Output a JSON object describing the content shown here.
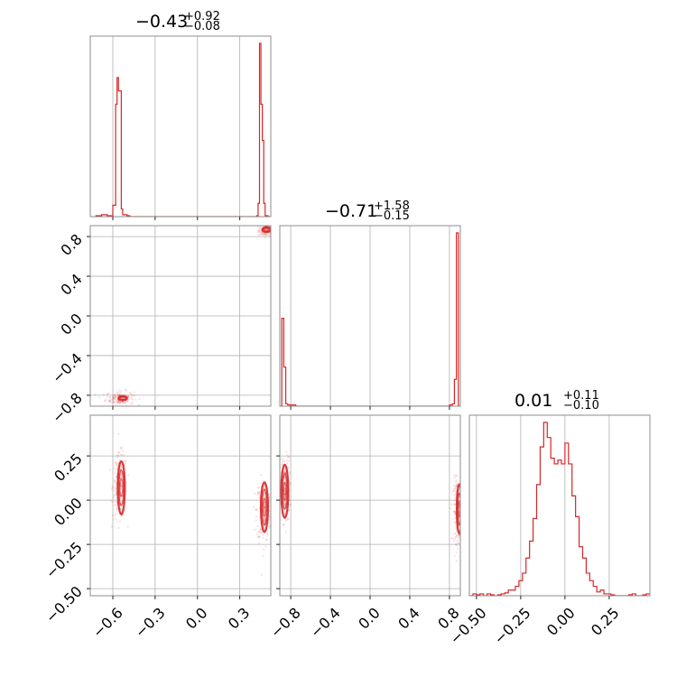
{
  "chart_data": {
    "type": "corner",
    "color": "#d62728",
    "parameters": [
      {
        "title": {
          "main": "−0.43",
          "plus": "+0.92",
          "minus": "−0.08"
        },
        "range": [
          -0.76,
          0.52
        ],
        "ticks": [
          {
            "value": -0.6,
            "label": "−0.6"
          },
          {
            "value": -0.3,
            "label": "−0.3"
          },
          {
            "value": 0.0,
            "label": "0.0"
          },
          {
            "value": 0.3,
            "label": "0.3"
          }
        ]
      },
      {
        "title": {
          "main": "−0.71",
          "plus": "+1.58",
          "minus": "−0.15"
        },
        "range": [
          -0.91,
          0.91
        ],
        "ticks": [
          {
            "value": -0.8,
            "label": "−0.8"
          },
          {
            "value": -0.4,
            "label": "−0.4"
          },
          {
            "value": 0.0,
            "label": "0.0"
          },
          {
            "value": 0.4,
            "label": "0.4"
          },
          {
            "value": 0.8,
            "label": "0.8"
          }
        ]
      },
      {
        "title": {
          "main": "0.01",
          "plus": "+0.11",
          "minus": "−0.10"
        },
        "range": [
          -0.54,
          0.48
        ],
        "ticks": [
          {
            "value": -0.5,
            "label": "−0.50"
          },
          {
            "value": -0.25,
            "label": "−0.25"
          },
          {
            "value": 0.0,
            "label": "0.00"
          },
          {
            "value": 0.25,
            "label": "0.25"
          }
        ]
      }
    ],
    "histograms": [
      {
        "param": 0,
        "edges": [
          -0.72,
          -0.68,
          -0.64,
          -0.6,
          -0.58,
          -0.57,
          -0.56,
          -0.55,
          -0.54,
          -0.53,
          -0.52,
          -0.5,
          -0.48,
          -0.46,
          0.42,
          0.43,
          0.44,
          0.45,
          0.46,
          0.47,
          0.48,
          0.5,
          0.52
        ],
        "counts": [
          0.005,
          0.01,
          0.005,
          0.06,
          0.59,
          0.73,
          0.66,
          0.66,
          0.04,
          0.01,
          0.01,
          0.005,
          0.0,
          0.0,
          0.005,
          0.07,
          0.91,
          0.59,
          0.4,
          0.07,
          0.005,
          0.0
        ]
      },
      {
        "param": 1,
        "edges": [
          -0.91,
          -0.89,
          -0.87,
          -0.85,
          -0.83,
          -0.8,
          -0.75,
          -0.7,
          0.8,
          0.83,
          0.85,
          0.87,
          0.89,
          0.91
        ],
        "counts": [
          0.0,
          0.36,
          0.16,
          0.01,
          0.005,
          0.005,
          0.0,
          0.0,
          0.005,
          0.01,
          0.11,
          0.71,
          0.0
        ]
      },
      {
        "param": 2,
        "edges": [
          -0.54,
          -0.52,
          -0.5,
          -0.48,
          -0.46,
          -0.44,
          -0.42,
          -0.4,
          -0.38,
          -0.36,
          -0.34,
          -0.32,
          -0.3,
          -0.28,
          -0.26,
          -0.24,
          -0.22,
          -0.2,
          -0.18,
          -0.16,
          -0.14,
          -0.12,
          -0.1,
          -0.08,
          -0.06,
          -0.04,
          -0.02,
          0.0,
          0.02,
          0.04,
          0.06,
          0.08,
          0.1,
          0.12,
          0.14,
          0.16,
          0.18,
          0.2,
          0.22,
          0.24,
          0.26,
          0.28,
          0.3,
          0.32,
          0.34,
          0.36,
          0.38,
          0.4,
          0.42,
          0.44,
          0.46,
          0.48
        ],
        "counts": [
          0.0,
          0.01,
          0.005,
          0.01,
          0.0,
          0.01,
          0.005,
          0.0,
          0.005,
          0.01,
          0.015,
          0.03,
          0.03,
          0.05,
          0.08,
          0.12,
          0.2,
          0.29,
          0.41,
          0.59,
          0.79,
          0.92,
          0.84,
          0.73,
          0.7,
          0.72,
          0.7,
          0.81,
          0.7,
          0.53,
          0.42,
          0.26,
          0.2,
          0.12,
          0.08,
          0.05,
          0.02,
          0.03,
          0.01,
          0.01,
          0.005,
          0.0,
          0.0,
          0.0,
          0.0,
          0.005,
          0.01,
          0.0,
          0.0,
          0.005,
          0.01
        ]
      }
    ],
    "scatter_clusters": [
      {
        "row": 1,
        "col": 0,
        "cx": 0.49,
        "cy": 0.86,
        "sx": 0.03,
        "sy": 0.03,
        "n": 120
      },
      {
        "row": 1,
        "col": 0,
        "cx": -0.55,
        "cy": -0.83,
        "sx": 0.05,
        "sy": 0.035,
        "n": 160
      },
      {
        "row": 2,
        "col": 0,
        "cx": -0.55,
        "cy": 0.08,
        "sx": 0.025,
        "sy": 0.09,
        "n": 220
      },
      {
        "row": 2,
        "col": 0,
        "cx": 0.47,
        "cy": -0.06,
        "sx": 0.025,
        "sy": 0.09,
        "n": 220
      },
      {
        "row": 2,
        "col": 1,
        "cx": -0.86,
        "cy": 0.06,
        "sx": 0.025,
        "sy": 0.09,
        "n": 220
      },
      {
        "row": 2,
        "col": 1,
        "cx": 0.88,
        "cy": -0.06,
        "sx": 0.02,
        "sy": 0.09,
        "n": 180
      }
    ],
    "contours": [
      {
        "row": 1,
        "col": 0,
        "cx": -0.53,
        "cy": -0.83,
        "rx": [
          0.03,
          0.02
        ],
        "ry": [
          0.02,
          0.013
        ]
      },
      {
        "row": 1,
        "col": 0,
        "cx": 0.49,
        "cy": 0.87,
        "rx": [
          0.03,
          0.02
        ],
        "ry": [
          0.025,
          0.015
        ]
      },
      {
        "row": 2,
        "col": 0,
        "cx": -0.54,
        "cy": 0.07,
        "rx": [
          0.025,
          0.017,
          0.01
        ],
        "ry": [
          0.15,
          0.1,
          0.05
        ]
      },
      {
        "row": 2,
        "col": 0,
        "cx": 0.475,
        "cy": -0.04,
        "rx": [
          0.025,
          0.017,
          0.01
        ],
        "ry": [
          0.14,
          0.1,
          0.05
        ]
      },
      {
        "row": 2,
        "col": 1,
        "cx": -0.86,
        "cy": 0.05,
        "rx": [
          0.035,
          0.022,
          0.012
        ],
        "ry": [
          0.15,
          0.1,
          0.05
        ]
      },
      {
        "row": 2,
        "col": 1,
        "cx": 0.9,
        "cy": -0.05,
        "rx": [
          0.025,
          0.016,
          0.009
        ],
        "ry": [
          0.14,
          0.09,
          0.045
        ]
      }
    ]
  }
}
